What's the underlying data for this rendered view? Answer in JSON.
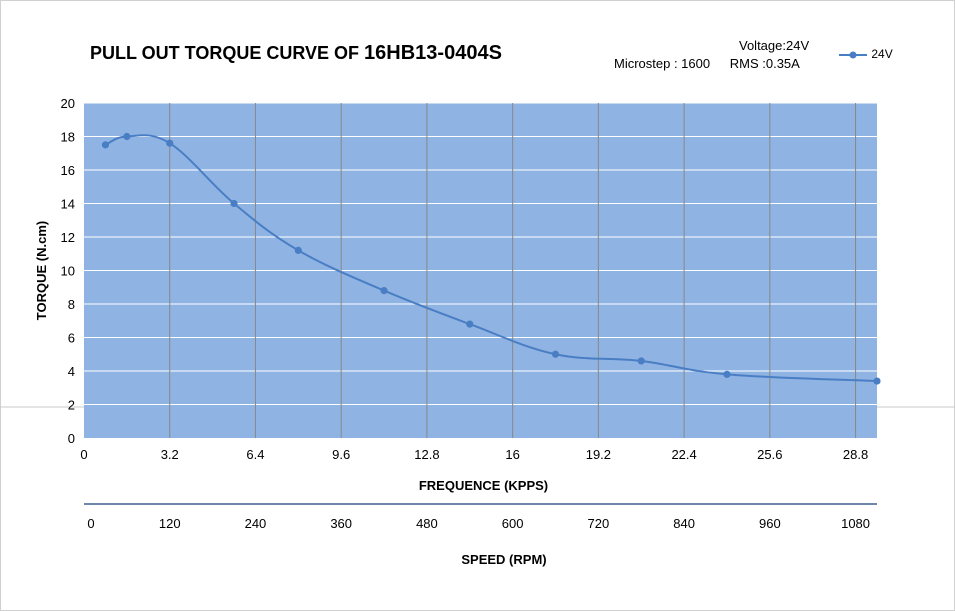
{
  "title": {
    "text": "PULL OUT TORQUE CURVE OF",
    "model": "16HB13-0404S"
  },
  "info": {
    "voltage": "Voltage:24V",
    "microstep": "Microstep : 1600",
    "rms": "RMS :0.35A"
  },
  "legend": {
    "label": "24V"
  },
  "colors": {
    "plot_bg": "#8fb4e3",
    "line": "#4a7ec4",
    "grid_h": "#ffffff",
    "grid_v": "#888888"
  },
  "chart_data": {
    "type": "line",
    "title": "PULL OUT TORQUE CURVE OF 16HB13-0404S",
    "xlabel": "FREQUENCE (KPPS)",
    "ylabel": "TORQUE (N.cm)",
    "secondary_xlabel": "SPEED (RPM)",
    "xlim": [
      0,
      29.6
    ],
    "ylim": [
      0,
      20
    ],
    "x_ticks": [
      "0",
      "3.2",
      "6.4",
      "9.6",
      "12.8",
      "16",
      "19.2",
      "22.4",
      "25.6",
      "28.8"
    ],
    "y_ticks": [
      "0",
      "2",
      "4",
      "6",
      "8",
      "10",
      "12",
      "14",
      "16",
      "18",
      "20"
    ],
    "speed_ticks": [
      "0",
      "120",
      "240",
      "360",
      "480",
      "600",
      "720",
      "840",
      "960",
      "1080"
    ],
    "grid": true,
    "legend_position": "top-right",
    "series": [
      {
        "name": "24V",
        "x": [
          0.8,
          1.6,
          3.2,
          5.6,
          8.0,
          11.2,
          14.4,
          17.6,
          20.8,
          24.0,
          29.6
        ],
        "y": [
          17.5,
          18.0,
          17.6,
          14.0,
          11.2,
          8.8,
          6.8,
          5.0,
          4.6,
          3.8,
          3.4
        ]
      }
    ]
  }
}
